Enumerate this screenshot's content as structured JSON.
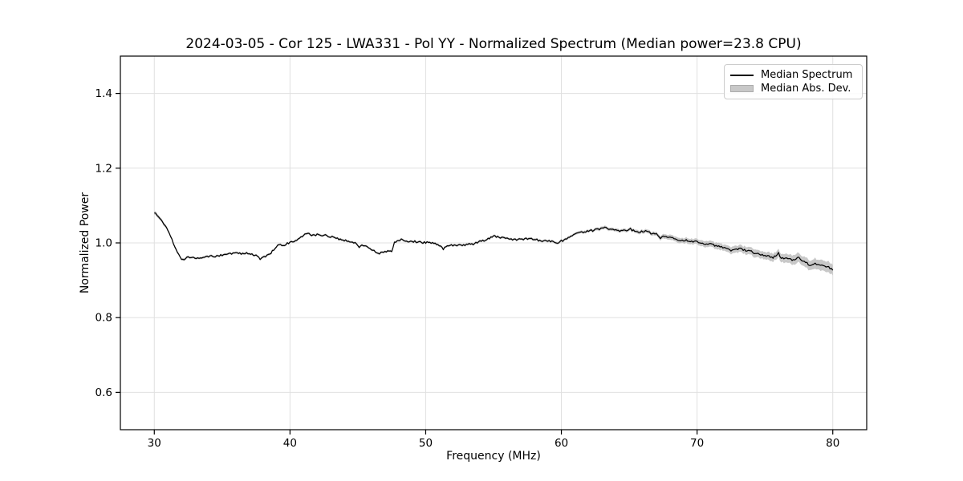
{
  "title": "2024-03-05 - Cor 125 - LWA331 - Pol YY - Normalized Spectrum (Median power=23.8 CPU)",
  "legend": {
    "items": [
      {
        "label": "Median Spectrum",
        "type": "line",
        "color": "#000000"
      },
      {
        "label": "Median Abs. Dev.",
        "type": "patch",
        "color": "#c8c8c8"
      }
    ]
  },
  "colors": {
    "line": "#000000",
    "band": "#c8c8c8",
    "grid": "#e0e0e0",
    "spine": "#000000",
    "background": "#ffffff"
  },
  "chart_data": {
    "type": "line",
    "title": "2024-03-05 - Cor 125 - LWA331 - Pol YY - Normalized Spectrum (Median power=23.8 CPU)",
    "xlabel": "Frequency (MHz)",
    "ylabel": "Normalized Power",
    "xlim": [
      27.5,
      82.5
    ],
    "ylim": [
      0.5,
      1.5
    ],
    "xticks": [
      30,
      40,
      50,
      60,
      70,
      80
    ],
    "xtick_labels": [
      "30",
      "40",
      "50",
      "60",
      "70",
      "80"
    ],
    "yticks": [
      0.6,
      0.8,
      1.0,
      1.2,
      1.4
    ],
    "ytick_labels": [
      "0.6",
      "0.8",
      "1.0",
      "1.2",
      "1.4"
    ],
    "grid": true,
    "legend_position": "upper right",
    "series": [
      {
        "name": "Median Spectrum",
        "type": "line",
        "color": "#000000",
        "x": [
          30.0,
          30.3,
          30.6,
          31.0,
          31.5,
          31.8,
          32.0,
          32.2,
          32.5,
          32.9,
          33.1,
          33.3,
          33.7,
          34.1,
          34.5,
          35.0,
          35.5,
          36.0,
          36.4,
          36.8,
          37.2,
          37.5,
          37.8,
          38.1,
          38.5,
          38.9,
          39.2,
          39.5,
          39.8,
          40.2,
          40.6,
          41.0,
          41.3,
          41.6,
          42.0,
          42.4,
          42.8,
          43.2,
          43.6,
          44.0,
          44.4,
          44.8,
          45.1,
          45.3,
          45.6,
          46.0,
          46.3,
          46.6,
          46.9,
          47.2,
          47.5,
          47.7,
          48.0,
          48.3,
          48.7,
          49.1,
          49.5,
          50.0,
          50.4,
          50.8,
          51.3,
          51.6,
          52.0,
          52.4,
          52.8,
          53.2,
          53.6,
          54.0,
          54.4,
          54.8,
          55.0,
          55.4,
          55.7,
          56.0,
          56.4,
          56.8,
          57.2,
          57.5,
          57.7,
          58.0,
          58.4,
          58.8,
          59.2,
          59.6,
          60.0,
          60.3,
          60.6,
          60.9,
          61.2,
          61.6,
          62.0,
          62.4,
          62.8,
          63.2,
          63.6,
          64.0,
          64.4,
          64.8,
          65.1,
          65.4,
          65.8,
          66.2,
          66.6,
          67.0,
          67.3,
          67.5,
          67.8,
          68.2,
          68.6,
          69.0,
          69.4,
          69.8,
          70.2,
          70.6,
          71.0,
          71.4,
          71.8,
          72.2,
          72.5,
          72.8,
          73.2,
          73.6,
          74.0,
          74.4,
          74.8,
          75.2,
          75.6,
          76.0,
          76.2,
          76.5,
          76.8,
          77.1,
          77.4,
          77.7,
          78.0,
          78.3,
          78.6,
          79.0,
          79.4,
          79.7,
          80.0
        ],
        "y": [
          1.082,
          1.07,
          1.057,
          1.035,
          0.992,
          0.97,
          0.958,
          0.956,
          0.962,
          0.963,
          0.958,
          0.961,
          0.961,
          0.964,
          0.963,
          0.968,
          0.971,
          0.973,
          0.971,
          0.972,
          0.97,
          0.966,
          0.957,
          0.962,
          0.97,
          0.985,
          0.995,
          0.992,
          0.998,
          1.003,
          1.009,
          1.02,
          1.025,
          1.021,
          1.022,
          1.021,
          1.018,
          1.017,
          1.011,
          1.007,
          1.004,
          1.0,
          0.99,
          0.997,
          0.99,
          0.983,
          0.976,
          0.971,
          0.976,
          0.978,
          0.977,
          1.002,
          1.007,
          1.009,
          1.002,
          1.004,
          1.002,
          1.001,
          1.0,
          0.998,
          0.984,
          0.995,
          0.993,
          0.994,
          0.993,
          0.996,
          0.998,
          1.003,
          1.008,
          1.015,
          1.02,
          1.014,
          1.016,
          1.011,
          1.008,
          1.009,
          1.008,
          1.012,
          1.014,
          1.01,
          1.006,
          1.007,
          1.004,
          1.0,
          1.005,
          1.008,
          1.014,
          1.024,
          1.026,
          1.03,
          1.032,
          1.034,
          1.037,
          1.04,
          1.036,
          1.034,
          1.033,
          1.034,
          1.037,
          1.031,
          1.029,
          1.032,
          1.025,
          1.023,
          1.009,
          1.019,
          1.016,
          1.013,
          1.009,
          1.007,
          1.006,
          1.004,
          1.0,
          0.997,
          0.996,
          0.992,
          0.99,
          0.985,
          0.979,
          0.984,
          0.984,
          0.979,
          0.977,
          0.971,
          0.968,
          0.964,
          0.96,
          0.972,
          0.96,
          0.958,
          0.957,
          0.953,
          0.962,
          0.955,
          0.95,
          0.94,
          0.945,
          0.944,
          0.939,
          0.935,
          0.927
        ]
      },
      {
        "name": "Median Abs. Dev.",
        "type": "band",
        "color": "#c8c8c8",
        "x": [
          30,
          31,
          33,
          40,
          50,
          58,
          62,
          65,
          67,
          68,
          69,
          70,
          72,
          74,
          76,
          78,
          80
        ],
        "halfwidth": [
          0.005,
          0.004,
          0.003,
          0.003,
          0.003,
          0.0032,
          0.0038,
          0.0045,
          0.005,
          0.0065,
          0.007,
          0.0075,
          0.0088,
          0.01,
          0.011,
          0.013,
          0.015
        ]
      }
    ]
  }
}
